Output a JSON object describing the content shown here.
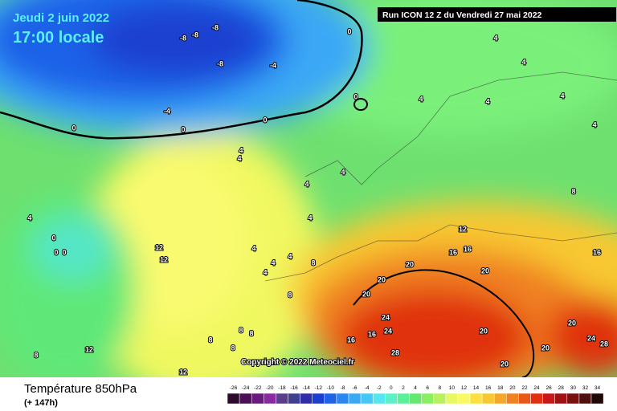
{
  "header": {
    "date": "Jeudi 2 juin 2022",
    "time": "17:00 locale",
    "run": "Run ICON 12 Z du Vendredi 27 mai 2022"
  },
  "copyright": "Copyright © 2022 Meteociel.fr",
  "footer": {
    "title": "Température 850hPa",
    "lead": "(+ 147h)"
  },
  "legend": {
    "labels": [
      "-26",
      "-24",
      "-22",
      "-20",
      "-18",
      "-16",
      "-14",
      "-12",
      "-10",
      "-8",
      "-6",
      "-4",
      "-2",
      "0",
      "2",
      "4",
      "6",
      "8",
      "10",
      "12",
      "14",
      "16",
      "18",
      "20",
      "22",
      "24",
      "26",
      "28",
      "30",
      "32",
      "34"
    ],
    "colors": [
      "#2b0a2e",
      "#4a0f55",
      "#6a1a7c",
      "#8a2aa0",
      "#5b3d8a",
      "#3f3f8f",
      "#2e2ea8",
      "#1a3fd0",
      "#1d62e8",
      "#2b86f0",
      "#3aa8f5",
      "#45c8f5",
      "#55e6f0",
      "#5bf0c8",
      "#5af09a",
      "#63e870",
      "#8af060",
      "#b8f060",
      "#e8f860",
      "#fafa60",
      "#fae040",
      "#f8c830",
      "#f5a828",
      "#f08020",
      "#e85818",
      "#e03010",
      "#c81818",
      "#a01010",
      "#781010",
      "#501010",
      "#200808"
    ]
  },
  "contour_labels": [
    "-8",
    "-8",
    "-8",
    "-8",
    "-4",
    "-4",
    "0",
    "0",
    "0",
    "0",
    "0",
    "4",
    "4",
    "4",
    "4",
    "4",
    "4",
    "4",
    "4",
    "4",
    "4",
    "4",
    "4",
    "4",
    "4",
    "4",
    "4",
    "0",
    "0",
    "0",
    "8",
    "8",
    "8",
    "8",
    "8",
    "8",
    "8",
    "8",
    "12",
    "12",
    "12",
    "12",
    "12",
    "16",
    "16",
    "16",
    "16",
    "16",
    "20",
    "20",
    "20",
    "20",
    "20",
    "20",
    "20",
    "20",
    "24",
    "24",
    "24",
    "28",
    "28"
  ]
}
